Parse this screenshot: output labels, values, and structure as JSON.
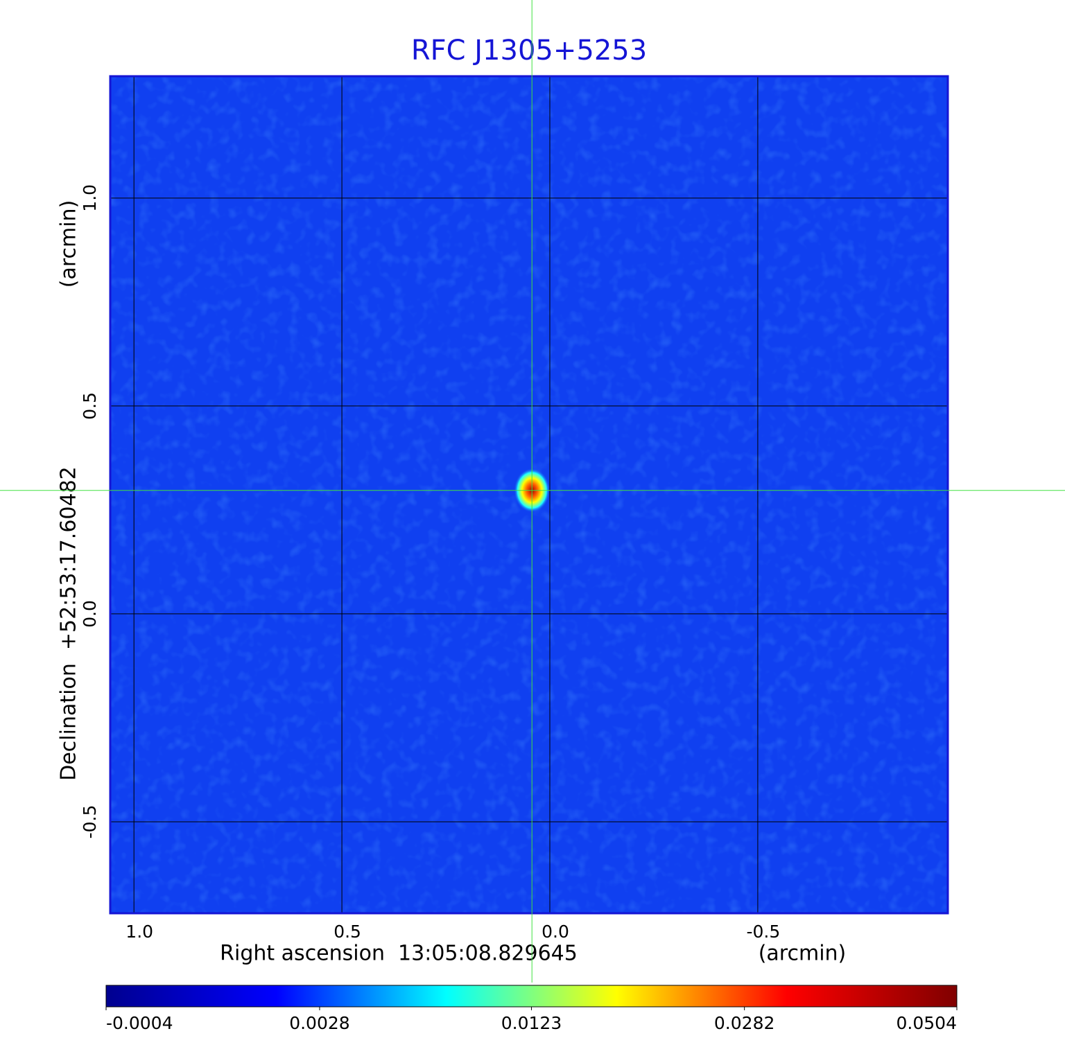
{
  "chart_data": {
    "type": "image",
    "title": "RFC J1305+5253",
    "xlabel": "Right ascension  13:05:08.829645",
    "xunit": "(arcmin)",
    "ylabel": "Declination  +52:53:17.60482",
    "yunit": "(arcmin)",
    "xlim": [
      1.057,
      -0.957
    ],
    "ylim": [
      -0.72,
      1.293
    ],
    "xticks": [
      {
        "value": 1,
        "label": "1.0"
      },
      0.5,
      {
        "value": 0,
        "label": "0.0"
      },
      -0.5
    ],
    "yticks": [
      -0.5,
      {
        "value": 0,
        "label": "0.0"
      },
      0.5,
      {
        "value": 1,
        "label": "1.0"
      }
    ],
    "grid": true,
    "source": {
      "x": 0.043,
      "y": 0.297,
      "peak": 0.0504
    },
    "colorbar": {
      "scale": "sqrt",
      "lim": [
        -0.0004,
        0.0504
      ],
      "ticks": [
        -0.0004,
        0.0028,
        0.0123,
        0.0282,
        0.0504
      ],
      "colors": [
        "#00008f",
        "#0000ff",
        "#00ffff",
        "#ffff00",
        "#ff0000",
        "#800000"
      ]
    }
  }
}
